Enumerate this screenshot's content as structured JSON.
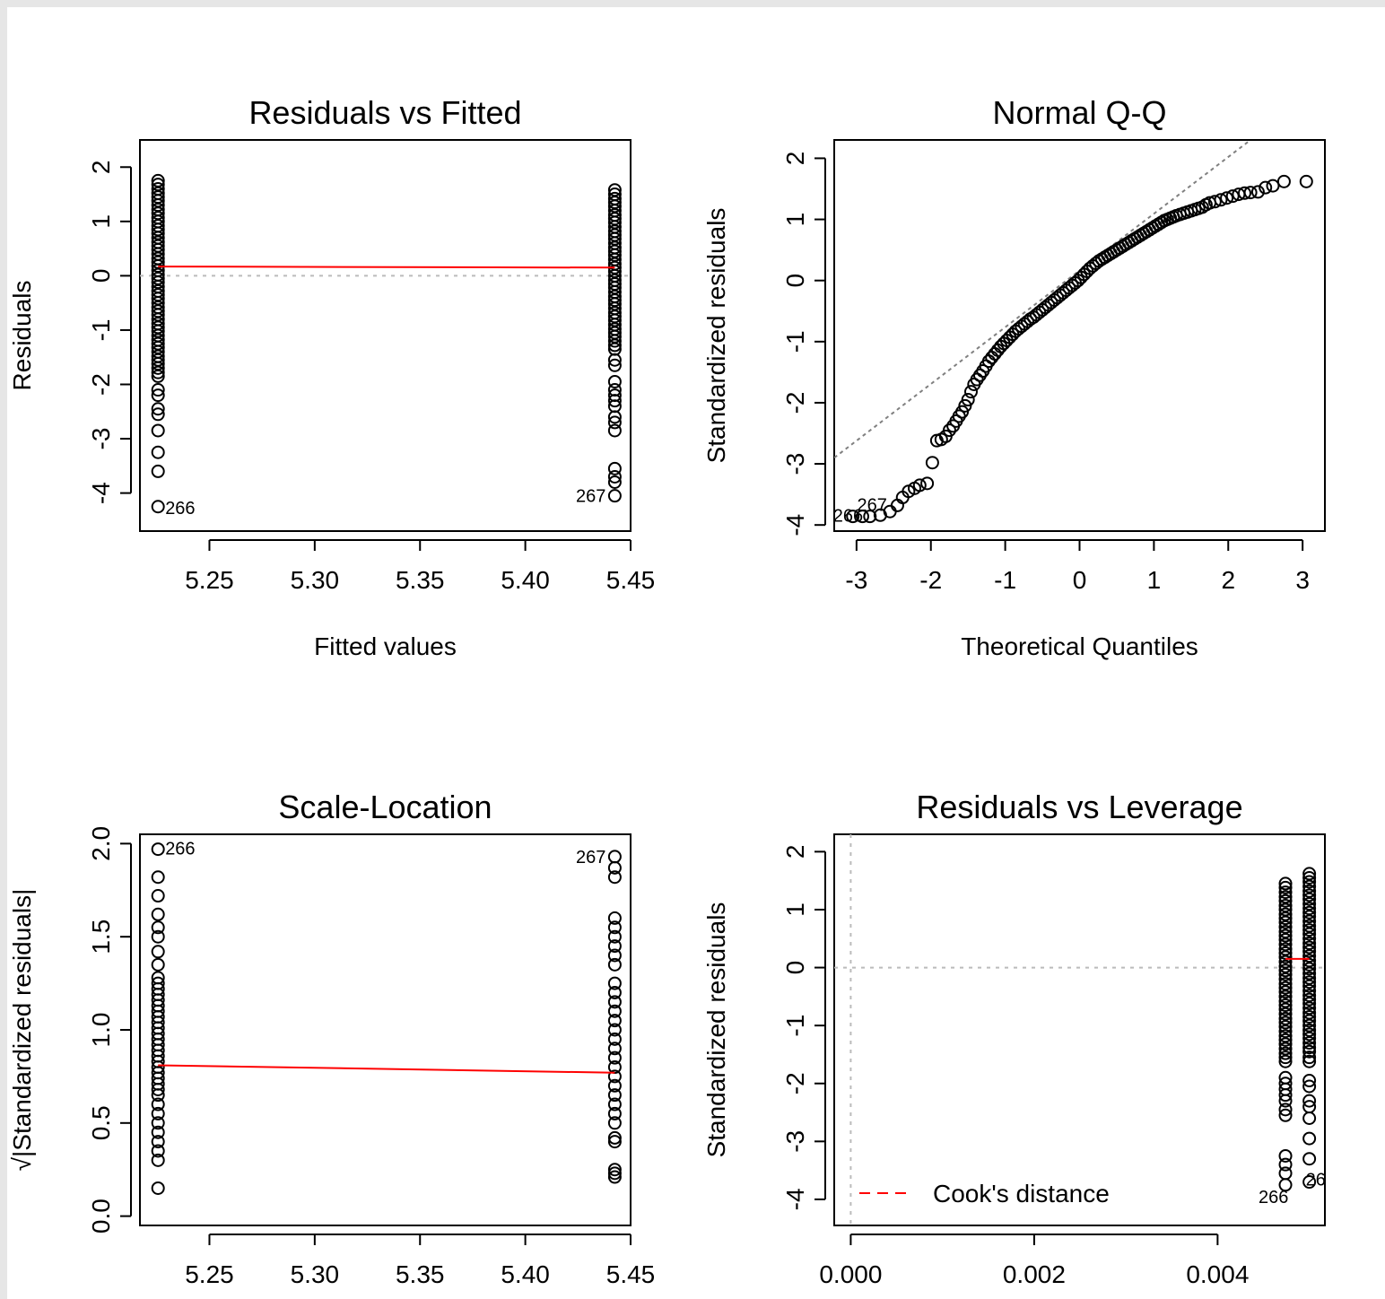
{
  "panels": [
    {
      "key": "rvf",
      "title": "Residuals vs Fitted",
      "xlabel": "Fitted values",
      "ylabel": "Residuals",
      "xticks": [
        "5.25",
        "5.30",
        "5.35",
        "5.40",
        "5.45"
      ],
      "yticks": [
        "-4",
        "-3",
        "-2",
        "-1",
        "0",
        "1",
        "2"
      ],
      "point_labels": [
        "266",
        "267"
      ]
    },
    {
      "key": "qq",
      "title": "Normal Q-Q",
      "xlabel": "Theoretical Quantiles",
      "ylabel": "Standardized residuals",
      "xticks": [
        "-3",
        "-2",
        "-1",
        "0",
        "1",
        "2",
        "3"
      ],
      "yticks": [
        "-4",
        "-3",
        "-2",
        "-1",
        "0",
        "1",
        "2"
      ],
      "point_labels": [
        "266",
        "267"
      ]
    },
    {
      "key": "sl",
      "title": "Scale-Location",
      "xlabel": "",
      "ylabel": "√|Standardized residuals|",
      "xticks": [
        "5.25",
        "5.30",
        "5.35",
        "5.40",
        "5.45"
      ],
      "yticks": [
        "0.0",
        "0.5",
        "1.0",
        "1.5",
        "2.0"
      ],
      "point_labels": [
        "266",
        "267"
      ]
    },
    {
      "key": "rvl",
      "title": "Residuals vs Leverage",
      "xlabel": "",
      "ylabel": "Standardized residuals",
      "xticks": [
        "0.000",
        "0.002",
        "0.004"
      ],
      "yticks": [
        "-4",
        "-3",
        "-2",
        "-1",
        "0",
        "1",
        "2"
      ],
      "point_labels": [
        "266",
        "267"
      ],
      "legend": "Cook's distance"
    }
  ],
  "colors": {
    "points": "#000000",
    "smoother": "#ff0000",
    "reference": "#bbbbbb",
    "qqline": "#808080",
    "cooks": "#ff0000"
  },
  "chart_data": [
    {
      "type": "scatter",
      "title": "Residuals vs Fitted",
      "xlabel": "Fitted values",
      "ylabel": "Residuals",
      "xlim": [
        5.217,
        5.45
      ],
      "ylim": [
        -4.7,
        2.5
      ],
      "xticks": [
        5.25,
        5.3,
        5.35,
        5.4,
        5.45
      ],
      "yticks": [
        -4,
        -3,
        -2,
        -1,
        0,
        1,
        2
      ],
      "groups": [
        {
          "x": 5.2256,
          "y": [
            1.75,
            1.68,
            1.6,
            1.52,
            1.45,
            1.38,
            1.3,
            1.22,
            1.15,
            1.07,
            1.0,
            0.92,
            0.85,
            0.78,
            0.7,
            0.62,
            0.55,
            0.48,
            0.4,
            0.32,
            0.25,
            0.18,
            0.1,
            0.02,
            -0.05,
            -0.12,
            -0.2,
            -0.28,
            -0.35,
            -0.42,
            -0.5,
            -0.58,
            -0.65,
            -0.72,
            -0.8,
            -0.88,
            -0.95,
            -1.02,
            -1.1,
            -1.18,
            -1.25,
            -1.32,
            -1.4,
            -1.48,
            -1.55,
            -1.62,
            -1.7,
            -1.78,
            -1.85,
            -2.1,
            -2.2,
            -2.45,
            -2.55,
            -2.85,
            -3.25,
            -3.6,
            -4.25
          ]
        },
        {
          "x": 5.4425,
          "y": [
            1.58,
            1.5,
            1.42,
            1.35,
            1.28,
            1.2,
            1.12,
            1.05,
            0.98,
            0.9,
            0.82,
            0.75,
            0.68,
            0.6,
            0.52,
            0.45,
            0.38,
            0.3,
            0.22,
            0.15,
            0.08,
            0.0,
            -0.08,
            -0.15,
            -0.22,
            -0.3,
            -0.38,
            -0.45,
            -0.52,
            -0.6,
            -0.68,
            -0.75,
            -0.82,
            -0.9,
            -0.98,
            -1.05,
            -1.12,
            -1.2,
            -1.28,
            -1.35,
            -1.55,
            -1.65,
            -1.95,
            -2.1,
            -2.2,
            -2.3,
            -2.4,
            -2.6,
            -2.7,
            -2.85,
            -3.55,
            -3.7,
            -3.8,
            -4.05
          ]
        }
      ],
      "smoother": [
        [
          5.2256,
          0.17
        ],
        [
          5.4425,
          0.15
        ]
      ],
      "reference_y": 0,
      "labeled": [
        {
          "label": "266",
          "x": 5.2256,
          "y": -4.25
        },
        {
          "label": "267",
          "x": 5.4425,
          "y": -4.05
        }
      ]
    },
    {
      "type": "scatter",
      "title": "Normal Q-Q",
      "xlabel": "Theoretical Quantiles",
      "ylabel": "Standardized residuals",
      "xlim": [
        -3.3,
        3.3
      ],
      "ylim": [
        -4.1,
        2.3
      ],
      "xticks": [
        -3,
        -2,
        -1,
        0,
        1,
        2,
        3
      ],
      "yticks": [
        -4,
        -3,
        -2,
        -1,
        0,
        1,
        2
      ],
      "points": [
        [
          -3.05,
          -3.86
        ],
        [
          -2.92,
          -3.86
        ],
        [
          -2.82,
          -3.86
        ],
        [
          -2.68,
          -3.84
        ],
        [
          -2.55,
          -3.78
        ],
        [
          -2.45,
          -3.68
        ],
        [
          -2.38,
          -3.55
        ],
        [
          -2.3,
          -3.45
        ],
        [
          -2.22,
          -3.4
        ],
        [
          -2.15,
          -3.35
        ],
        [
          -2.05,
          -3.32
        ],
        [
          -1.98,
          -2.98
        ],
        [
          -1.92,
          -2.62
        ],
        [
          -1.86,
          -2.6
        ],
        [
          -1.8,
          -2.55
        ],
        [
          -1.75,
          -2.45
        ],
        [
          -1.7,
          -2.38
        ],
        [
          -1.66,
          -2.3
        ],
        [
          -1.62,
          -2.22
        ],
        [
          -1.58,
          -2.15
        ],
        [
          -1.54,
          -2.05
        ],
        [
          -1.5,
          -1.95
        ],
        [
          -1.46,
          -1.82
        ],
        [
          -1.42,
          -1.7
        ],
        [
          -1.38,
          -1.62
        ],
        [
          -1.34,
          -1.55
        ],
        [
          -1.3,
          -1.48
        ],
        [
          -1.26,
          -1.4
        ],
        [
          -1.22,
          -1.32
        ],
        [
          -1.18,
          -1.26
        ],
        [
          -1.14,
          -1.2
        ],
        [
          -1.1,
          -1.14
        ],
        [
          -1.06,
          -1.08
        ],
        [
          -1.02,
          -1.03
        ],
        [
          -0.98,
          -0.98
        ],
        [
          -0.94,
          -0.93
        ],
        [
          -0.9,
          -0.88
        ],
        [
          -0.86,
          -0.83
        ],
        [
          -0.82,
          -0.79
        ],
        [
          -0.78,
          -0.75
        ],
        [
          -0.74,
          -0.71
        ],
        [
          -0.7,
          -0.67
        ],
        [
          -0.66,
          -0.63
        ],
        [
          -0.62,
          -0.6
        ],
        [
          -0.58,
          -0.56
        ],
        [
          -0.54,
          -0.52
        ],
        [
          -0.5,
          -0.48
        ],
        [
          -0.46,
          -0.44
        ],
        [
          -0.42,
          -0.4
        ],
        [
          -0.38,
          -0.36
        ],
        [
          -0.34,
          -0.32
        ],
        [
          -0.3,
          -0.28
        ],
        [
          -0.26,
          -0.24
        ],
        [
          -0.22,
          -0.2
        ],
        [
          -0.18,
          -0.16
        ],
        [
          -0.14,
          -0.12
        ],
        [
          -0.1,
          -0.08
        ],
        [
          -0.06,
          -0.04
        ],
        [
          -0.02,
          0.0
        ],
        [
          0.02,
          0.05
        ],
        [
          0.06,
          0.1
        ],
        [
          0.1,
          0.15
        ],
        [
          0.14,
          0.2
        ],
        [
          0.18,
          0.24
        ],
        [
          0.22,
          0.28
        ],
        [
          0.26,
          0.32
        ],
        [
          0.3,
          0.35
        ],
        [
          0.34,
          0.38
        ],
        [
          0.38,
          0.41
        ],
        [
          0.42,
          0.44
        ],
        [
          0.46,
          0.47
        ],
        [
          0.5,
          0.5
        ],
        [
          0.54,
          0.53
        ],
        [
          0.58,
          0.56
        ],
        [
          0.62,
          0.59
        ],
        [
          0.66,
          0.62
        ],
        [
          0.7,
          0.65
        ],
        [
          0.74,
          0.68
        ],
        [
          0.78,
          0.71
        ],
        [
          0.82,
          0.74
        ],
        [
          0.86,
          0.77
        ],
        [
          0.9,
          0.8
        ],
        [
          0.94,
          0.83
        ],
        [
          0.98,
          0.86
        ],
        [
          1.02,
          0.89
        ],
        [
          1.06,
          0.92
        ],
        [
          1.1,
          0.95
        ],
        [
          1.14,
          0.98
        ],
        [
          1.18,
          1.0
        ],
        [
          1.22,
          1.02
        ],
        [
          1.26,
          1.04
        ],
        [
          1.3,
          1.06
        ],
        [
          1.35,
          1.08
        ],
        [
          1.4,
          1.1
        ],
        [
          1.45,
          1.12
        ],
        [
          1.5,
          1.14
        ],
        [
          1.55,
          1.16
        ],
        [
          1.6,
          1.18
        ],
        [
          1.65,
          1.2
        ],
        [
          1.7,
          1.24
        ],
        [
          1.75,
          1.27
        ],
        [
          1.82,
          1.29
        ],
        [
          1.9,
          1.32
        ],
        [
          1.98,
          1.35
        ],
        [
          2.06,
          1.38
        ],
        [
          2.14,
          1.41
        ],
        [
          2.22,
          1.43
        ],
        [
          2.3,
          1.44
        ],
        [
          2.4,
          1.45
        ],
        [
          2.5,
          1.52
        ],
        [
          2.6,
          1.55
        ],
        [
          2.75,
          1.62
        ],
        [
          3.05,
          1.62
        ]
      ],
      "qqline": [
        [
          -3.3,
          -2.9
        ],
        [
          2.3,
          2.3
        ]
      ],
      "labeled": [
        {
          "label": "266",
          "x": -3.05,
          "y": -3.86
        },
        {
          "label": "267",
          "x": -2.92,
          "y": -3.86
        }
      ]
    },
    {
      "type": "scatter",
      "title": "Scale-Location",
      "xlabel": "",
      "ylabel": "√|Standardized residuals|",
      "xlim": [
        5.217,
        5.45
      ],
      "ylim": [
        -0.05,
        2.05
      ],
      "xticks": [
        5.25,
        5.3,
        5.35,
        5.4,
        5.45
      ],
      "yticks": [
        0.0,
        0.5,
        1.0,
        1.5,
        2.0
      ],
      "groups": [
        {
          "x": 5.2256,
          "y": [
            1.97,
            1.82,
            1.72,
            1.62,
            1.55,
            1.5,
            1.42,
            1.35,
            1.28,
            1.25,
            1.22,
            1.19,
            1.16,
            1.13,
            1.1,
            1.07,
            1.04,
            1.01,
            0.98,
            0.95,
            0.92,
            0.89,
            0.86,
            0.83,
            0.8,
            0.77,
            0.74,
            0.71,
            0.68,
            0.65,
            0.6,
            0.55,
            0.5,
            0.45,
            0.4,
            0.35,
            0.3,
            0.15
          ]
        },
        {
          "x": 5.4425,
          "y": [
            1.93,
            1.87,
            1.82,
            1.6,
            1.55,
            1.5,
            1.45,
            1.4,
            1.35,
            1.25,
            1.2,
            1.15,
            1.1,
            1.05,
            1.0,
            0.95,
            0.9,
            0.85,
            0.8,
            0.75,
            0.7,
            0.65,
            0.6,
            0.55,
            0.5,
            0.42,
            0.4,
            0.25,
            0.23,
            0.21
          ]
        }
      ],
      "smoother": [
        [
          5.2256,
          0.81
        ],
        [
          5.4425,
          0.77
        ]
      ],
      "labeled": [
        {
          "label": "266",
          "x": 5.2256,
          "y": 1.97
        },
        {
          "label": "267",
          "x": 5.4425,
          "y": 1.93
        }
      ]
    },
    {
      "type": "scatter",
      "title": "Residuals vs Leverage",
      "xlabel": "",
      "ylabel": "Standardized residuals",
      "xlim": [
        -0.00018,
        0.00517
      ],
      "ylim": [
        -4.45,
        2.3
      ],
      "xticks": [
        0.0,
        0.002,
        0.004
      ],
      "yticks": [
        -4,
        -3,
        -2,
        -1,
        0,
        1,
        2
      ],
      "groups": [
        {
          "x": 0.00474,
          "y": [
            1.45,
            1.38,
            1.3,
            1.22,
            1.15,
            1.07,
            1.0,
            0.92,
            0.85,
            0.78,
            0.7,
            0.62,
            0.55,
            0.48,
            0.4,
            0.32,
            0.25,
            0.18,
            0.1,
            0.02,
            -0.05,
            -0.12,
            -0.2,
            -0.28,
            -0.35,
            -0.42,
            -0.5,
            -0.58,
            -0.65,
            -0.72,
            -0.8,
            -0.88,
            -0.95,
            -1.02,
            -1.1,
            -1.18,
            -1.25,
            -1.32,
            -1.4,
            -1.48,
            -1.55,
            -1.62,
            -1.9,
            -2.0,
            -2.1,
            -2.2,
            -2.3,
            -2.45,
            -2.55,
            -3.25,
            -3.4,
            -3.55,
            -3.75
          ]
        },
        {
          "x": 0.005,
          "y": [
            1.62,
            1.55,
            1.48,
            1.4,
            1.32,
            1.25,
            1.18,
            1.1,
            1.02,
            0.95,
            0.88,
            0.8,
            0.72,
            0.65,
            0.58,
            0.5,
            0.42,
            0.35,
            0.28,
            0.2,
            0.12,
            0.05,
            -0.02,
            -0.1,
            -0.18,
            -0.25,
            -0.32,
            -0.4,
            -0.48,
            -0.55,
            -0.62,
            -0.7,
            -0.78,
            -0.85,
            -0.92,
            -1.0,
            -1.08,
            -1.15,
            -1.22,
            -1.3,
            -1.38,
            -1.45,
            -1.55,
            -1.62,
            -1.95,
            -2.05,
            -2.3,
            -2.4,
            -2.6,
            -2.95,
            -3.3,
            -3.7
          ]
        }
      ],
      "smoother": [
        [
          0.00474,
          0.15
        ],
        [
          0.005,
          0.15
        ]
      ],
      "reference_x": 0,
      "reference_y": 0,
      "labeled": [
        {
          "label": "266",
          "x": 0.00474,
          "y": -3.75
        },
        {
          "label": "267",
          "x": 0.005,
          "y": -3.7
        }
      ],
      "legend": {
        "entries": [
          "Cook's distance"
        ],
        "position": "bottom-left"
      }
    }
  ]
}
